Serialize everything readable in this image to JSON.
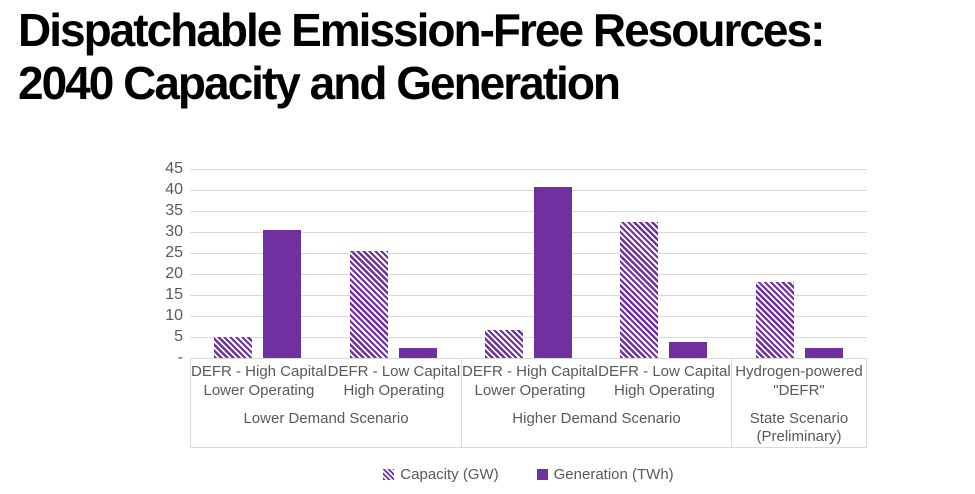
{
  "title": {
    "line1": "Dispatchable Emission-Free Resources:",
    "line2": "2040 Capacity and Generation"
  },
  "chart_data": {
    "type": "bar",
    "title": "Dispatchable Emission-Free Resources: 2040 Capacity and Generation",
    "ylim": [
      0,
      45
    ],
    "yticks": [
      {
        "value": 45,
        "label": "45"
      },
      {
        "value": 40,
        "label": "40"
      },
      {
        "value": 35,
        "label": "35"
      },
      {
        "value": 30,
        "label": "30"
      },
      {
        "value": 25,
        "label": "25"
      },
      {
        "value": 20,
        "label": "20"
      },
      {
        "value": 15,
        "label": "15"
      },
      {
        "value": 10,
        "label": "10"
      },
      {
        "value": 5,
        "label": "5"
      },
      {
        "value": 0,
        "label": "-"
      }
    ],
    "grid": true,
    "legend_position": "bottom",
    "groups": [
      {
        "label_lines": [
          "Lower Demand Scenario"
        ],
        "categories": [
          {
            "lines": [
              "DEFR - High Capital",
              "Lower Operating"
            ]
          },
          {
            "lines": [
              "DEFR - Low Capital",
              "High Operating"
            ]
          }
        ]
      },
      {
        "label_lines": [
          "Higher Demand Scenario"
        ],
        "categories": [
          {
            "lines": [
              "DEFR - High Capital",
              "Lower Operating"
            ]
          },
          {
            "lines": [
              "DEFR - Low Capital",
              "High Operating"
            ]
          }
        ]
      },
      {
        "label_lines": [
          "State Scenario",
          "(Preliminary)"
        ],
        "categories": [
          {
            "lines": [
              "Hydrogen-powered",
              "\"DEFR\""
            ]
          }
        ]
      }
    ],
    "series": [
      {
        "name": "Capacity (GW)",
        "style": "hatched",
        "values": [
          5.0,
          25.5,
          6.6,
          32.5,
          18.0
        ]
      },
      {
        "name": "Generation (TWh)",
        "style": "solid",
        "values": [
          30.5,
          2.4,
          40.7,
          3.9,
          2.4
        ]
      }
    ],
    "colors": {
      "bar_purple": "#7030A0",
      "gridline": "#D9D9D9",
      "axis_box": "#D9D9D9",
      "label_text": "#595959",
      "title_text": "#000000"
    }
  }
}
